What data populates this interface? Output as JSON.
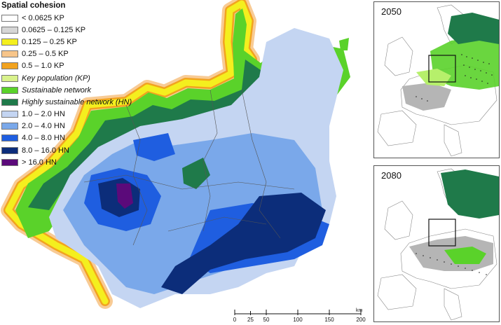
{
  "legend": {
    "title": "Spatial cohesion",
    "items": [
      {
        "label": "< 0.0625 KP",
        "color": "#ffffff",
        "italic": false
      },
      {
        "label": "0.0625 – 0.125 KP",
        "color": "#d6d6d6",
        "italic": false
      },
      {
        "label": "0.125 – 0.25 KP",
        "color": "#f4ef1e",
        "italic": false
      },
      {
        "label": "0.25 – 0.5 KP",
        "color": "#f7c58a",
        "italic": false
      },
      {
        "label": "0.5 – 1.0 KP",
        "color": "#f2a31f",
        "italic": false
      },
      {
        "label": "Key population (KP)",
        "color": "#d9f28c",
        "italic": true
      },
      {
        "label": "Sustainable network",
        "color": "#5ad22a",
        "italic": true
      },
      {
        "label": "Highly sustainable network (HN)",
        "color": "#1f7a4a",
        "italic": true
      },
      {
        "label": "1.0 – 2.0 HN",
        "color": "#c4d5f2",
        "italic": false
      },
      {
        "label": "2.0 – 4.0 HN",
        "color": "#7aa8ea",
        "italic": false
      },
      {
        "label": "4.0 – 8.0 HN",
        "color": "#1f5ee0",
        "italic": false
      },
      {
        "label": "8.0 – 16.0 HN",
        "color": "#0c2d7a",
        "italic": false
      },
      {
        "label": "> 16.0 HN",
        "color": "#5b0a7a",
        "italic": false
      }
    ]
  },
  "insets": [
    {
      "year": "2050"
    },
    {
      "year": "2080"
    }
  ],
  "scalebar": {
    "unit": "km",
    "ticks": [
      "0",
      "25",
      "50",
      "100",
      "150",
      "200"
    ]
  }
}
